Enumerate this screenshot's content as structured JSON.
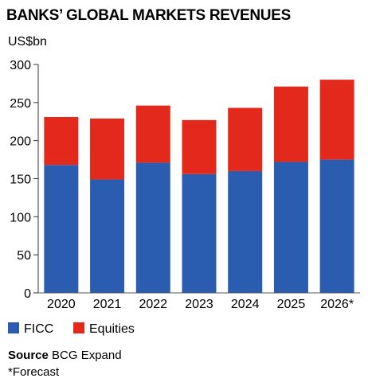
{
  "chart_data": {
    "type": "bar",
    "stacked": true,
    "title": "BANKS’ GLOBAL MARKETS REVENUES",
    "unit_label": "US$bn",
    "categories": [
      "2020",
      "2021",
      "2022",
      "2023",
      "2024",
      "2025",
      "2026*"
    ],
    "series": [
      {
        "name": "FICC",
        "color": "#2a5db0",
        "values": [
          168,
          149,
          171,
          156,
          160,
          172,
          175
        ]
      },
      {
        "name": "Equities",
        "color": "#e2291c",
        "values": [
          63,
          80,
          75,
          71,
          83,
          99,
          105
        ]
      }
    ],
    "ylim": [
      0,
      300
    ],
    "yticks": [
      0,
      50,
      100,
      150,
      200,
      250,
      300
    ],
    "grid": false,
    "legend_position": "bottom-left"
  },
  "source": {
    "label": "Source",
    "text": "BCG Expand"
  },
  "footnote": "*Forecast"
}
